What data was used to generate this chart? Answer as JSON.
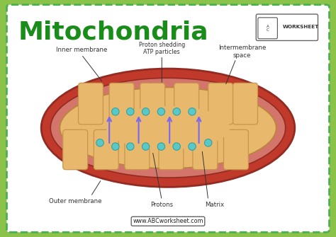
{
  "title": "Mitochondria",
  "title_color": "#1a8c1a",
  "title_fontsize": 26,
  "bg_color": "#8bc34a",
  "card_bg": "#ffffff",
  "border_color": "#4caf50",
  "outer_color": "#c0392b",
  "outer_edge": "#922b21",
  "intermembrane_color": "#cd6155",
  "inner_membrane_color": "#e8a07a",
  "matrix_color": "#e8b86d",
  "cristae_color": "#e8b86d",
  "cristae_edge": "#c8954d",
  "proton_color": "#5bc8c8",
  "proton_edge": "#2a9d9d",
  "arrow_color": "#7b68ee",
  "label_color": "#333333",
  "website": "www.ABCworksheet.com",
  "labels": {
    "inner_membrane": "Inner membrane",
    "outer_membrane": "Outer membrane",
    "proton_shedding": "Proton shedding\nATP particles",
    "intermembrane": "Intermembrane\nspace",
    "protons": "Protons",
    "matrix": "Matrix"
  },
  "xlim": [
    0,
    10
  ],
  "ylim": [
    0,
    7
  ]
}
